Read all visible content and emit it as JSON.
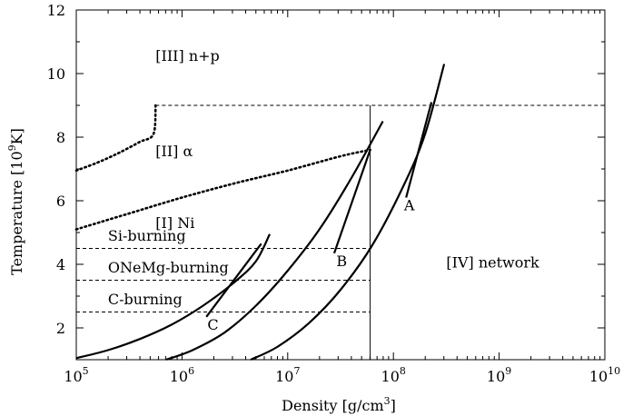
{
  "chart_data": {
    "type": "line",
    "title": "",
    "xlabel": {
      "text": "Density [g/cm",
      "sup": "3",
      "suffix": "]"
    },
    "ylabel": {
      "text": "Temperature [10",
      "sup": "9",
      "suffix": "K]"
    },
    "xscale": "log",
    "xlim": [
      5,
      10
    ],
    "ylim": [
      1,
      12
    ],
    "x_ticks": [
      {
        "value": 5,
        "base": "10",
        "exp": "5"
      },
      {
        "value": 6,
        "base": "10",
        "exp": "6"
      },
      {
        "value": 7,
        "base": "10",
        "exp": "7"
      },
      {
        "value": 8,
        "base": "10",
        "exp": "8"
      },
      {
        "value": 9,
        "base": "10",
        "exp": "9"
      },
      {
        "value": 10,
        "base": "10",
        "exp": "10"
      }
    ],
    "y_ticks": [
      {
        "value": 2,
        "label": "2"
      },
      {
        "value": 4,
        "label": "4"
      },
      {
        "value": 6,
        "label": "6"
      },
      {
        "value": 8,
        "label": "8"
      },
      {
        "value": 10,
        "label": "10"
      },
      {
        "value": 12,
        "label": "12"
      }
    ],
    "series": [
      {
        "name": "trajectory-c",
        "style": "solid",
        "points": [
          [
            5.0,
            1.05
          ],
          [
            5.3,
            1.3
          ],
          [
            5.6,
            1.65
          ],
          [
            5.9,
            2.1
          ],
          [
            6.2,
            2.7
          ],
          [
            6.5,
            3.45
          ],
          [
            6.7,
            4.1
          ],
          [
            6.83,
            4.95
          ]
        ]
      },
      {
        "name": "trajectory-b",
        "style": "solid",
        "points": [
          [
            5.85,
            1.0
          ],
          [
            6.1,
            1.3
          ],
          [
            6.4,
            1.85
          ],
          [
            6.7,
            2.7
          ],
          [
            7.0,
            3.8
          ],
          [
            7.3,
            5.1
          ],
          [
            7.6,
            6.7
          ],
          [
            7.9,
            8.5
          ]
        ]
      },
      {
        "name": "trajectory-a",
        "style": "solid",
        "points": [
          [
            6.65,
            1.0
          ],
          [
            6.9,
            1.4
          ],
          [
            7.2,
            2.15
          ],
          [
            7.5,
            3.2
          ],
          [
            7.8,
            4.6
          ],
          [
            8.1,
            6.5
          ],
          [
            8.3,
            8.1
          ],
          [
            8.48,
            10.3
          ]
        ]
      },
      {
        "name": "tangent-a",
        "style": "solid",
        "points": [
          [
            8.12,
            6.1
          ],
          [
            8.36,
            9.1
          ]
        ]
      },
      {
        "name": "tangent-b",
        "style": "solid",
        "points": [
          [
            7.44,
            4.35
          ],
          [
            7.78,
            7.6
          ]
        ]
      },
      {
        "name": "tangent-c",
        "style": "solid",
        "points": [
          [
            6.23,
            2.35
          ],
          [
            6.75,
            4.65
          ]
        ]
      },
      {
        "name": "boundary-upper",
        "style": "dotted",
        "points": [
          [
            5.0,
            6.95
          ],
          [
            5.2,
            7.2
          ],
          [
            5.4,
            7.5
          ],
          [
            5.6,
            7.85
          ],
          [
            5.73,
            8.1
          ],
          [
            5.75,
            9.0
          ]
        ]
      },
      {
        "name": "boundary-lower",
        "style": "dotted",
        "points": [
          [
            5.0,
            5.1
          ],
          [
            5.5,
            5.6
          ],
          [
            6.0,
            6.1
          ],
          [
            6.5,
            6.55
          ],
          [
            7.0,
            6.95
          ],
          [
            7.5,
            7.4
          ],
          [
            7.78,
            7.6
          ]
        ]
      },
      {
        "name": "nse-line",
        "style": "dashed",
        "points": [
          [
            5.75,
            9.0
          ],
          [
            10.0,
            9.0
          ]
        ]
      },
      {
        "name": "si-burning-line",
        "style": "dashed",
        "points": [
          [
            5.0,
            4.5
          ],
          [
            7.78,
            4.5
          ]
        ]
      },
      {
        "name": "onemg-burning-line",
        "style": "dashed",
        "points": [
          [
            5.0,
            3.5
          ],
          [
            7.78,
            3.5
          ]
        ]
      },
      {
        "name": "c-burning-line",
        "style": "dashed",
        "points": [
          [
            5.0,
            2.5
          ],
          [
            7.78,
            2.5
          ]
        ]
      },
      {
        "name": "density-boundary",
        "style": "thin",
        "points": [
          [
            7.78,
            1.0
          ],
          [
            7.78,
            9.0
          ]
        ]
      }
    ],
    "annotations": [
      {
        "text": "[III] n+p",
        "x": 5.75,
        "y": 10.4
      },
      {
        "text": "[II] α",
        "x": 5.75,
        "y": 7.4
      },
      {
        "text": "[I] Ni",
        "x": 5.75,
        "y": 5.15
      },
      {
        "text": "Si-burning",
        "x": 5.3,
        "y": 4.75
      },
      {
        "text": "ONeMg-burning",
        "x": 5.3,
        "y": 3.75
      },
      {
        "text": "C-burning",
        "x": 5.3,
        "y": 2.75
      },
      {
        "text": "[IV] network",
        "x": 8.5,
        "y": 3.9
      },
      {
        "text": "A",
        "x": 8.1,
        "y": 5.7
      },
      {
        "text": "B",
        "x": 7.46,
        "y": 3.95
      },
      {
        "text": "C",
        "x": 6.24,
        "y": 1.95
      }
    ]
  }
}
